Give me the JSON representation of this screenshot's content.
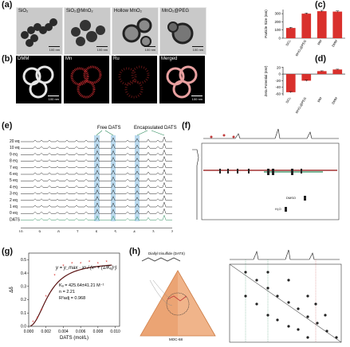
{
  "panels": {
    "a": {
      "letter": "(a)",
      "images": [
        {
          "label": "SiO₂",
          "scale": "100 nm"
        },
        {
          "label": "SiO₂@MnO₂",
          "scale": "100 nm"
        },
        {
          "label": "Hollow MnO₂",
          "scale": "100 nm"
        },
        {
          "label": "MnO₂@PEG",
          "scale": "100 nm"
        }
      ]
    },
    "b": {
      "letter": "(b)",
      "images": [
        {
          "label": "DMM",
          "scale": "100 nm",
          "color": "#e6e6e6"
        },
        {
          "label": "Mn",
          "scale": "",
          "color": "#b3262a"
        },
        {
          "label": "Ru",
          "scale": "",
          "color": "#7a1a1a"
        },
        {
          "label": "Merged",
          "scale": "100 nm",
          "color": "#e8a0a0"
        }
      ]
    },
    "c": {
      "letter": "(c)"
    },
    "d": {
      "letter": "(d)"
    },
    "e": {
      "letter": "(e)",
      "annotations": [
        "Free DATS",
        "Encapsulated DATS"
      ],
      "trace_labels": [
        "20 eq",
        "10 eq",
        "9 eq",
        "8 eq",
        "7 eq",
        "6 eq",
        "5 eq",
        "4 eq",
        "3 eq",
        "2 eq",
        "1 eq",
        "0 eq",
        "DATS"
      ],
      "x_ticks": [
        "10",
        "9",
        "8",
        "7",
        "6",
        "5",
        "4",
        "3",
        "2"
      ],
      "x_label": "δ (ppm)"
    },
    "f": {
      "letter": "(f)",
      "labels": [
        "DMSO",
        "H₂O"
      ]
    },
    "g": {
      "letter": "(g)"
    },
    "h": {
      "letter": "(h)",
      "molecule_label": "Diallyl trisulfide (DATS)",
      "cage_label": "MOC-68"
    }
  },
  "chart_data": [
    {
      "type": "bar",
      "panel": "c",
      "categories": [
        "SiO₂",
        "MnO₂@PEG",
        "MM",
        "DMM"
      ],
      "values": [
        125,
        300,
        330,
        325
      ],
      "errors": [
        8,
        8,
        10,
        8
      ],
      "ylabel": "Particle Size (nm)",
      "yticks": [
        0,
        100,
        200,
        300
      ],
      "ylim": [
        0,
        350
      ],
      "color": "#d9302c"
    },
    {
      "type": "bar",
      "panel": "d",
      "categories": [
        "SiO₂",
        "MnO₂@PEG",
        "MM",
        "DMM"
      ],
      "values": [
        -55,
        -20,
        9,
        14
      ],
      "errors": [
        2,
        2,
        1,
        1
      ],
      "ylabel": "Zeta Potential (mV)",
      "yticks": [
        -60,
        -40,
        -20,
        0,
        20
      ],
      "ylim": [
        -65,
        22
      ],
      "color": "#d9302c"
    },
    {
      "type": "scatter",
      "panel": "g",
      "x": [
        0.0005,
        0.001,
        0.0015,
        0.002,
        0.003,
        0.004,
        0.005,
        0.006,
        0.007,
        0.008,
        0.009
      ],
      "y": [
        0.03,
        0.06,
        0.12,
        0.22,
        0.38,
        0.45,
        0.47,
        0.47,
        0.48,
        0.47,
        0.48
      ],
      "fit": "Hill",
      "xlabel": "DATS (mol/L)",
      "ylabel": "Δδ",
      "xticks": [
        "0.000",
        "0.002",
        "0.004",
        "0.006",
        "0.008",
        "0.010"
      ],
      "yticks": [
        "0.0",
        "0.1",
        "0.2",
        "0.3",
        "0.4",
        "0.5"
      ],
      "xlim": [
        0,
        0.0105
      ],
      "ylim": [
        0,
        0.55
      ],
      "equation": "y = y_max · xⁿ / (xⁿ + (1/Kₐ)ⁿ)",
      "ka": "Kₐ = 425.64±41.21 M⁻¹",
      "n": "n = 2.21",
      "r2": "R²adj = 0.968",
      "point_color": "#d9302c",
      "line_color": "#5a1313"
    }
  ]
}
